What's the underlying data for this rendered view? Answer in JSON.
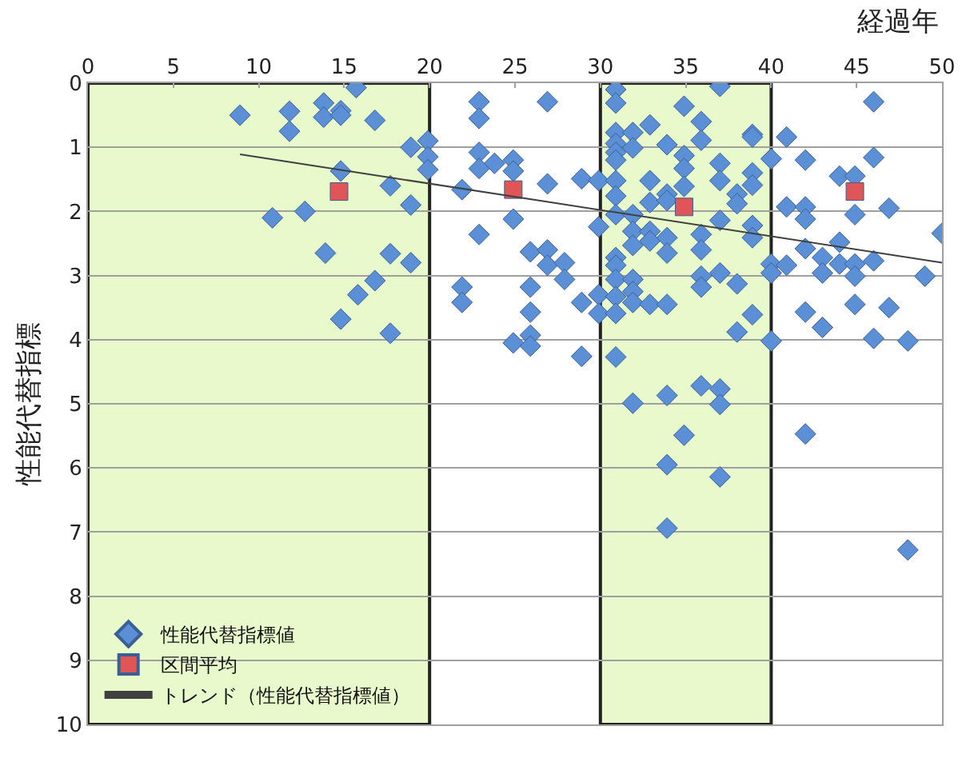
{
  "chart_data": {
    "type": "scatter",
    "xlabel": "経過年",
    "ylabel": "性能代替指標",
    "xlim": [
      0,
      50
    ],
    "xticks": [
      0,
      5,
      10,
      15,
      20,
      25,
      30,
      35,
      40,
      45,
      50
    ],
    "ylim": [
      10,
      0
    ],
    "yticks": [
      0,
      1,
      2,
      3,
      4,
      5,
      6,
      7,
      8,
      9,
      10
    ],
    "grid": "y",
    "legend": "bottom left",
    "bands": [
      {
        "axis": "x",
        "from": 0,
        "to": 20,
        "color": "#e8f9cc"
      },
      {
        "axis": "x",
        "from": 30,
        "to": 40,
        "color": "#e8f9cc"
      }
    ],
    "series": [
      {
        "name": "性能代替指標値",
        "marker": "diamond",
        "color": "#5b8fd6",
        "x": [
          8.9,
          11.8,
          11.8,
          13.8,
          13.8,
          14.8,
          14.8,
          15.7,
          16.8,
          18.9,
          19.9,
          19.9,
          19.9,
          14.8,
          17.7,
          18.9,
          10.8,
          12.7,
          13.9,
          17.7,
          18.9,
          16.8,
          15.8,
          14.8,
          17.7,
          22.9,
          22.9,
          26.9,
          22.9,
          22.9,
          23.8,
          24.9,
          24.9,
          21.9,
          26.9,
          28.9,
          24.9,
          22.9,
          25.9,
          26.9,
          26.9,
          27.9,
          27.9,
          21.9,
          21.9,
          25.9,
          25.9,
          28.9,
          24.9,
          25.9,
          25.9,
          28.9,
          29.9,
          29.9,
          29.9,
          29.9,
          30.9,
          30.9,
          30.9,
          30.9,
          30.9,
          30.9,
          30.9,
          30.9,
          30.9,
          30.9,
          30.9,
          30.9,
          30.9,
          30.9,
          30.9,
          31.9,
          31.9,
          31.9,
          31.9,
          31.9,
          31.9,
          31.9,
          31.9,
          31.9,
          32.9,
          32.9,
          32.9,
          32.9,
          32.9,
          32.9,
          33.9,
          33.9,
          33.9,
          33.9,
          33.9,
          33.9,
          33.9,
          33.9,
          33.9,
          34.9,
          34.9,
          34.9,
          34.9,
          34.9,
          35.9,
          35.9,
          35.9,
          35.9,
          35.9,
          35.9,
          35.9,
          37.0,
          37.0,
          37.0,
          37.0,
          37.0,
          37.0,
          37.0,
          37.0,
          38.0,
          38.0,
          38.0,
          38.0,
          38.9,
          38.9,
          38.9,
          38.9,
          38.9,
          38.9,
          38.9,
          40.0,
          40.0,
          40.0,
          40.0,
          40.9,
          40.9,
          40.9,
          42.0,
          42.0,
          42.0,
          42.0,
          42.0,
          42.0,
          43.0,
          43.0,
          43.0,
          44.0,
          44.0,
          44.0,
          44.9,
          44.9,
          44.9,
          44.9,
          44.9,
          46.0,
          46.0,
          46.0,
          46.0,
          46.9,
          46.9,
          48.0,
          48.0,
          49.0,
          50.0
        ],
        "values": [
          0.5,
          0.44,
          0.75,
          0.31,
          0.53,
          0.43,
          0.5,
          0.07,
          0.58,
          1.0,
          0.9,
          1.15,
          1.35,
          1.37,
          1.6,
          1.9,
          2.1,
          2.0,
          2.65,
          2.66,
          2.8,
          3.08,
          3.3,
          3.68,
          3.9,
          0.29,
          0.55,
          0.29,
          1.08,
          1.33,
          1.25,
          1.2,
          1.37,
          1.66,
          1.57,
          1.49,
          2.12,
          2.36,
          2.63,
          2.6,
          2.84,
          2.8,
          3.06,
          3.18,
          3.42,
          3.18,
          3.57,
          3.42,
          4.05,
          3.93,
          4.1,
          4.26,
          2.24,
          1.52,
          3.3,
          3.59,
          0.1,
          0.31,
          0.77,
          0.94,
          1.08,
          1.2,
          1.52,
          1.76,
          2.05,
          2.72,
          2.84,
          3.06,
          3.33,
          3.59,
          4.27,
          0.77,
          1.01,
          2.05,
          2.31,
          2.53,
          3.06,
          3.25,
          3.42,
          4.99,
          0.65,
          1.52,
          1.86,
          2.31,
          2.46,
          3.45,
          0.96,
          1.73,
          1.83,
          2.41,
          2.65,
          3.45,
          4.87,
          5.95,
          6.94,
          0.36,
          1.13,
          1.33,
          1.61,
          5.49,
          0.6,
          0.89,
          2.36,
          2.6,
          3.01,
          3.18,
          4.72,
          0.05,
          1.25,
          1.52,
          2.14,
          2.96,
          4.77,
          5.01,
          6.14,
          1.73,
          1.88,
          3.13,
          3.88,
          0.8,
          0.84,
          1.4,
          1.59,
          2.22,
          2.41,
          3.61,
          1.18,
          2.82,
          2.96,
          4.02,
          0.84,
          1.93,
          2.84,
          1.2,
          1.93,
          2.12,
          2.58,
          3.57,
          5.47,
          2.72,
          2.96,
          3.81,
          1.45,
          2.48,
          2.82,
          1.45,
          2.05,
          2.82,
          3.01,
          3.45,
          0.29,
          1.16,
          2.77,
          3.98,
          1.95,
          3.5,
          4.02,
          7.28,
          3.01,
          2.34
        ]
      },
      {
        "name": "区間平均",
        "marker": "square",
        "color": "#e05555",
        "x": [
          14.7,
          24.9,
          34.9,
          44.9
        ],
        "values": [
          1.69,
          1.66,
          1.93,
          1.69
        ]
      },
      {
        "name": "トレンド（性能代替指標値）",
        "type": "line",
        "marker": "none",
        "color": "#404040",
        "x": [
          8.9,
          50
        ],
        "values": [
          1.11,
          2.8
        ]
      }
    ]
  }
}
